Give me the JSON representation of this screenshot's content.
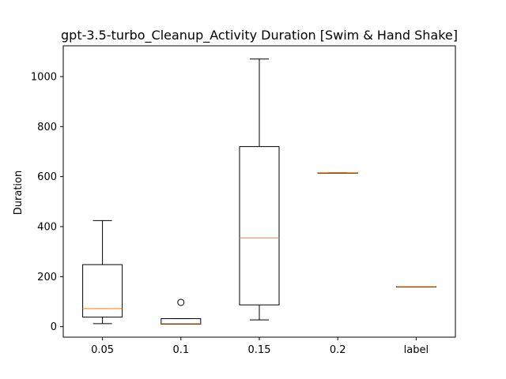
{
  "chart_data": {
    "type": "box",
    "title": "gpt-3.5-turbo_Cleanup_Activity Duration [Swim & Hand Shake]",
    "xlabel": "",
    "ylabel": "Duration",
    "categories": [
      "0.05",
      "0.1",
      "0.15",
      "0.2",
      "label"
    ],
    "boxes": [
      {
        "category": "0.05",
        "whisker_low": 12,
        "q1": 38,
        "median": 72,
        "q3": 248,
        "whisker_high": 424,
        "outliers": []
      },
      {
        "category": "0.1",
        "whisker_low": 10,
        "q1": 10,
        "median": 12,
        "q3": 32,
        "whisker_high": 32,
        "outliers": [
          97
        ]
      },
      {
        "category": "0.15",
        "whisker_low": 27,
        "q1": 87,
        "median": 355,
        "q3": 720,
        "whisker_high": 1070,
        "outliers": []
      },
      {
        "category": "0.2",
        "whisker_low": 615,
        "q1": 615,
        "median": 615,
        "q3": 615,
        "whisker_high": 615,
        "outliers": []
      },
      {
        "category": "label",
        "whisker_low": 160,
        "q1": 160,
        "median": 160,
        "q3": 160,
        "whisker_high": 160,
        "outliers": []
      }
    ],
    "yticks": [
      0,
      200,
      400,
      600,
      800,
      1000
    ],
    "ylim": [
      -42,
      1123
    ],
    "grid": false,
    "colors": {
      "box": "#000000",
      "median": "#ff7f0e",
      "whisker": "#000000"
    }
  }
}
